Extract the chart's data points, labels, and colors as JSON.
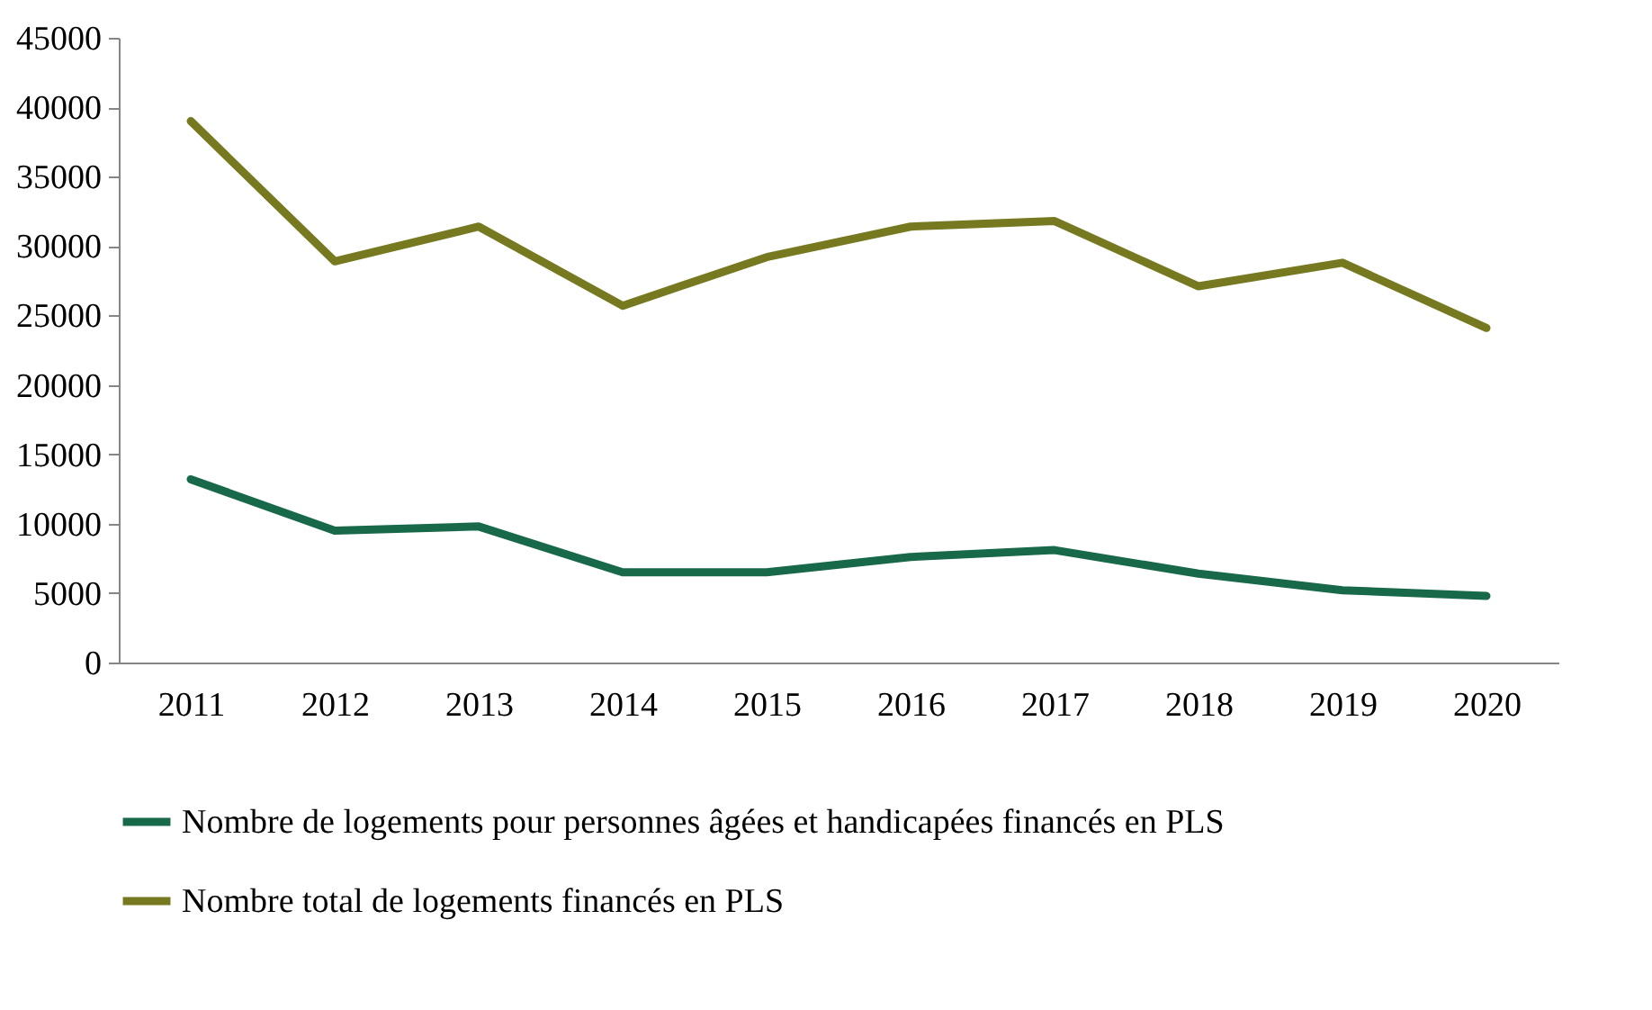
{
  "chart_data": {
    "type": "line",
    "categories": [
      "2011",
      "2012",
      "2013",
      "2014",
      "2015",
      "2016",
      "2017",
      "2018",
      "2019",
      "2020"
    ],
    "series": [
      {
        "name": "Nombre de logements pour personnes âgées et handicapées financés en PLS",
        "color": "#17694a",
        "values": [
          13200,
          9500,
          9800,
          6500,
          6500,
          7600,
          8100,
          6400,
          5200,
          4800
        ]
      },
      {
        "name": "Nombre total de logements financés en PLS",
        "color": "#76791f",
        "values": [
          39000,
          28900,
          31400,
          25700,
          29200,
          31400,
          31800,
          27100,
          28800,
          24100
        ]
      }
    ],
    "ylim": [
      0,
      45000
    ],
    "yticks": [
      0,
      5000,
      10000,
      15000,
      20000,
      25000,
      30000,
      35000,
      40000,
      45000
    ],
    "grid": false,
    "legend": "bottom",
    "marker": "none",
    "line_style": "solid"
  }
}
